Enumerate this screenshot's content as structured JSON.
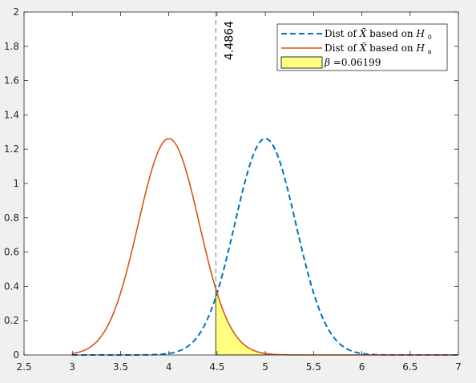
{
  "chart_data": {
    "type": "line",
    "title": "",
    "xlabel": "",
    "ylabel": "",
    "xlim": [
      2.5,
      7
    ],
    "ylim": [
      0,
      2
    ],
    "x_ticks": [
      2.5,
      3,
      3.5,
      4,
      4.5,
      5,
      5.5,
      6,
      6.5,
      7
    ],
    "x_tick_labels": [
      "2.5",
      "3",
      "3.5",
      "4",
      "4.5",
      "5",
      "5.5",
      "6",
      "6.5",
      "7"
    ],
    "y_ticks": [
      0,
      0.2,
      0.4,
      0.6,
      0.8,
      1,
      1.2,
      1.4,
      1.6,
      1.8,
      2
    ],
    "y_tick_labels": [
      "0",
      "0.2",
      "0.4",
      "0.6",
      "0.8",
      "1",
      "1.2",
      "1.4",
      "1.6",
      "1.8",
      "2"
    ],
    "grid": false,
    "legend_position": "top-right",
    "series": [
      {
        "name": "Dist of X̄ based on H0",
        "legend_parts": [
          "Dist of ",
          "X̄",
          " based on ",
          "H",
          "0"
        ],
        "style": "dashed",
        "color": "#0072bd",
        "distribution": {
          "kind": "normal",
          "mean": 5,
          "sd": 0.3162,
          "x_range": [
            3,
            7
          ]
        }
      },
      {
        "name": "Dist of X̄ based on Ha",
        "legend_parts": [
          "Dist of ",
          "X̄",
          " based on ",
          "H",
          "a"
        ],
        "style": "solid",
        "color": "#d95319",
        "distribution": {
          "kind": "normal",
          "mean": 4,
          "sd": 0.3162,
          "x_range": [
            3,
            7
          ]
        }
      }
    ],
    "shaded_region": {
      "name": "β =0.06199",
      "legend_symbol": "β",
      "legend_value": " =0.06199",
      "color": "#ffff80",
      "under_series": 1,
      "x_range": [
        4.4864,
        7
      ]
    },
    "vertical_line": {
      "x": 4.4864,
      "label": "4.4864",
      "style": "dashed",
      "color": "#555555"
    }
  }
}
